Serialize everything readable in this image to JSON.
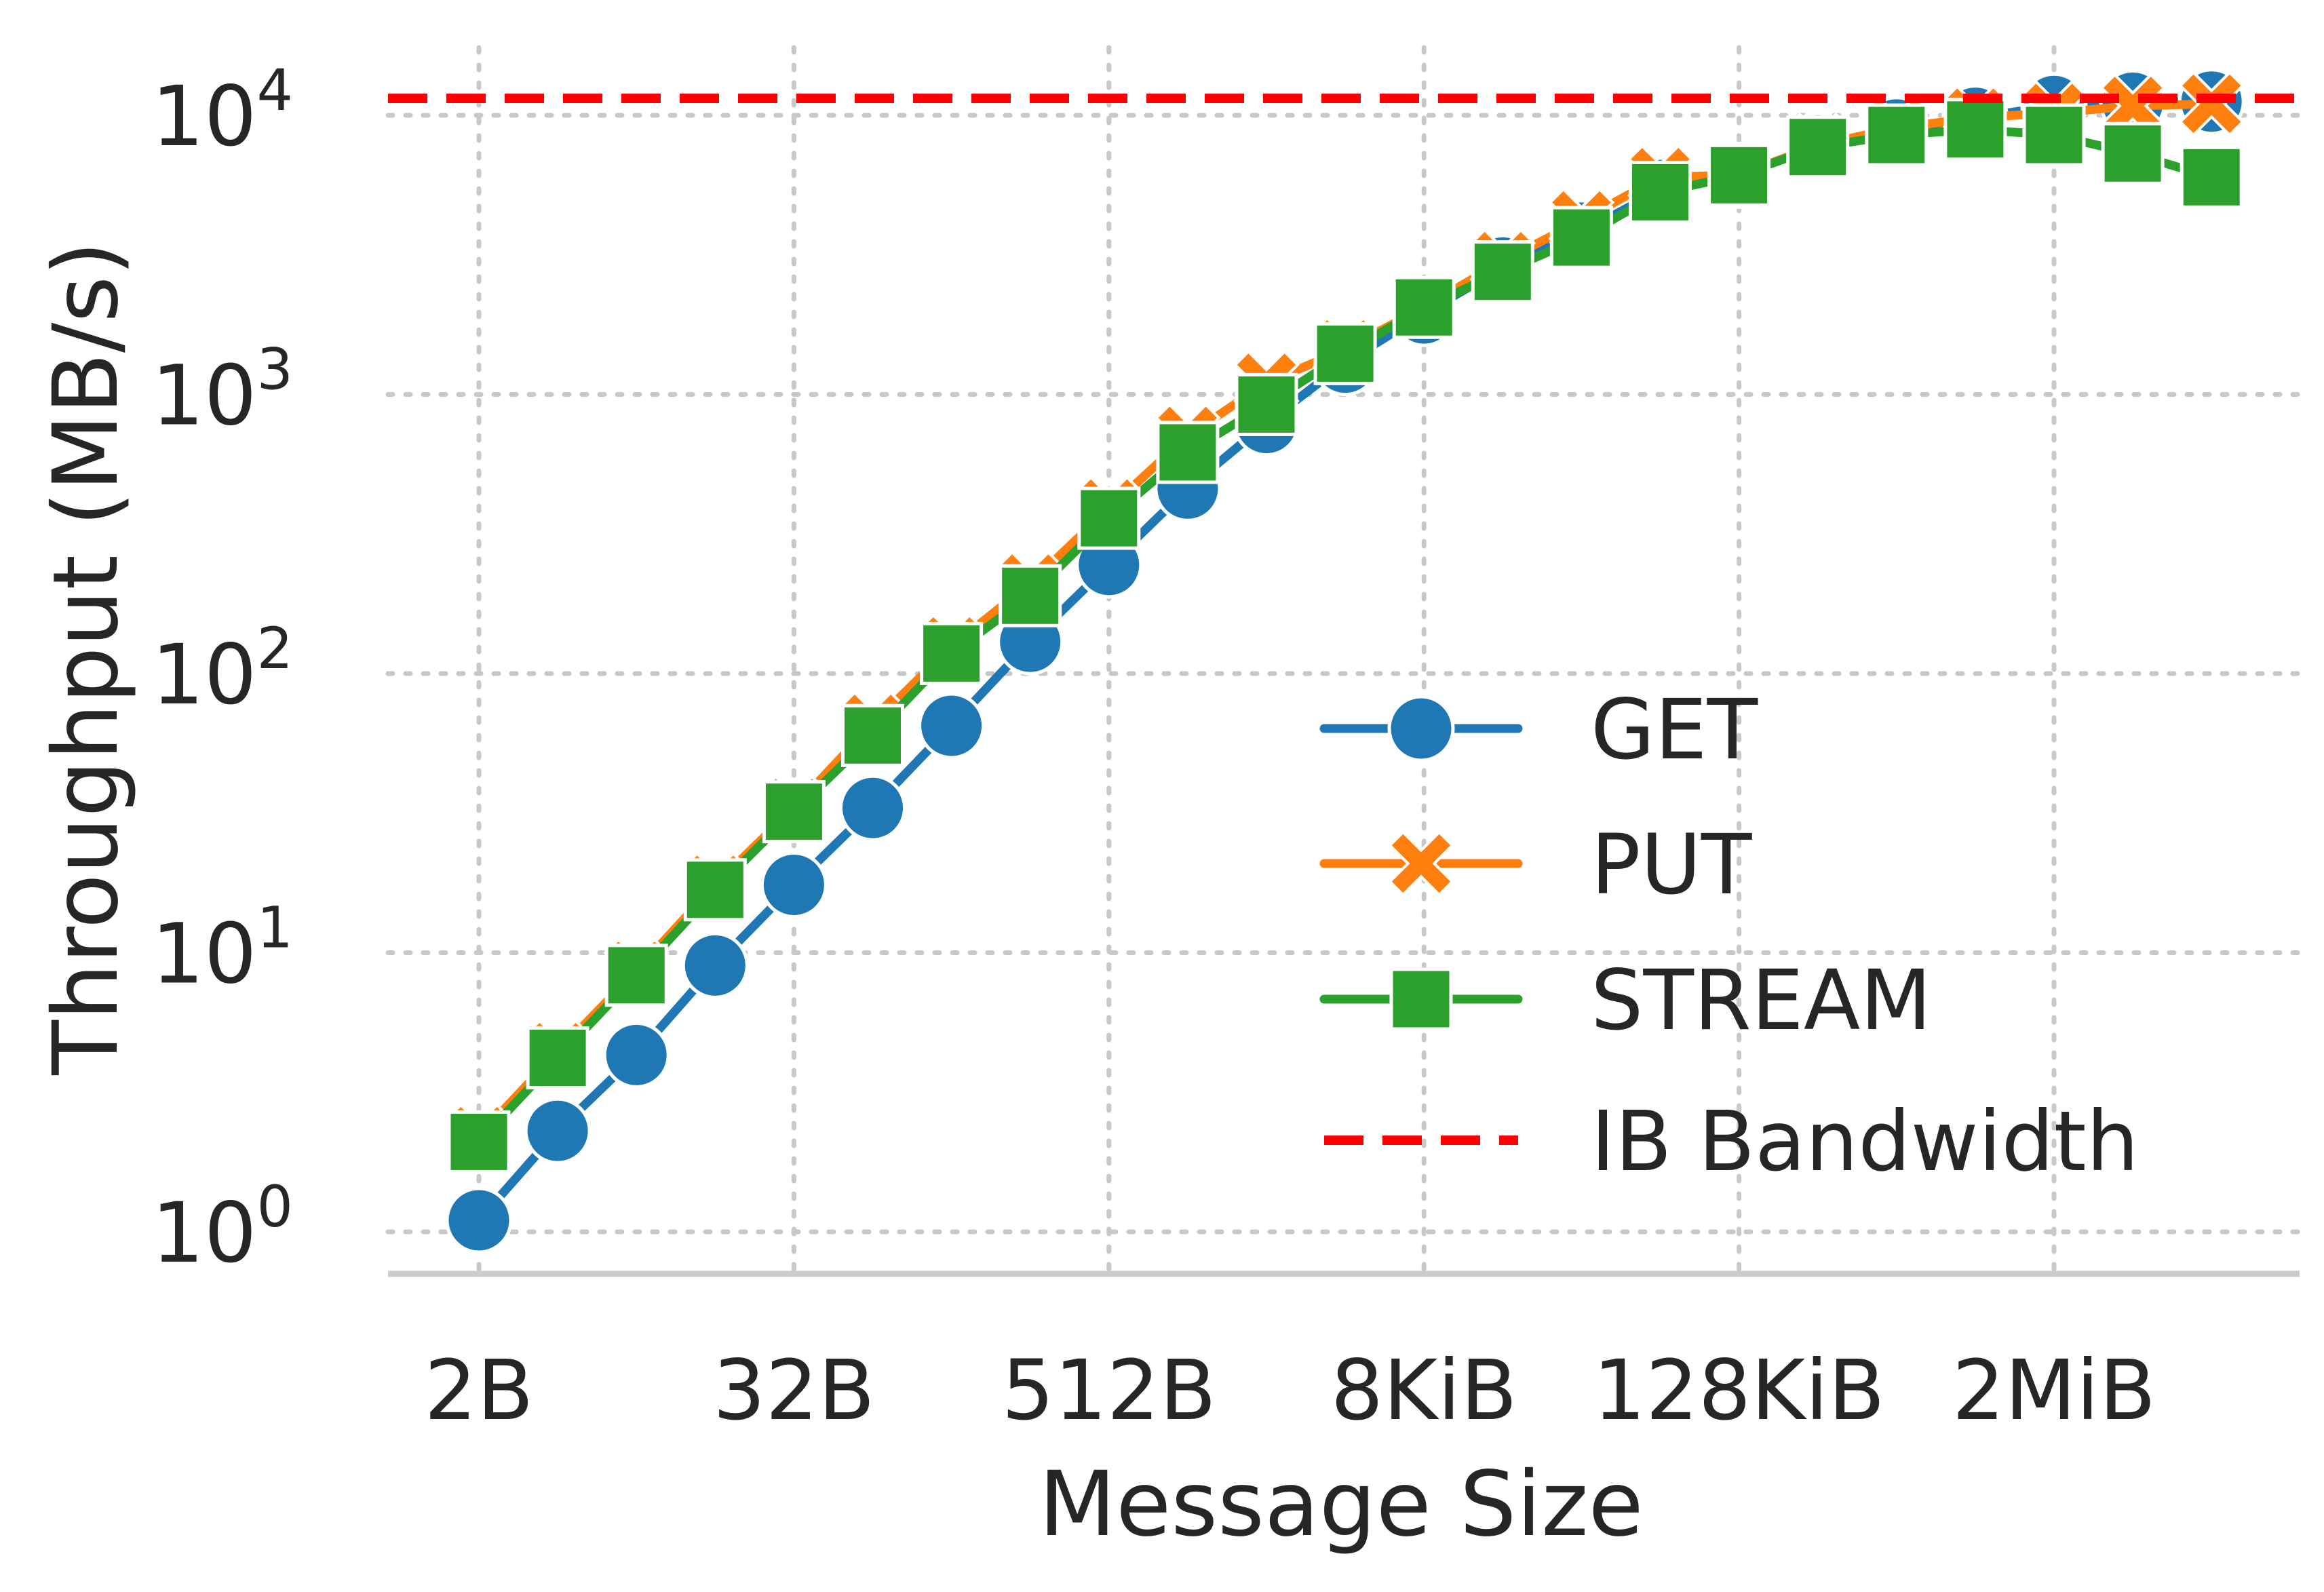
{
  "chart_data": {
    "type": "line",
    "xlabel": "Message Size",
    "ylabel": "Throughput (MB/s)",
    "x_scale": "log2",
    "y_scale": "log10",
    "x_tick_positions_log2": [
      1,
      5,
      9,
      13,
      17,
      21
    ],
    "x_tick_labels": [
      "2B",
      "32B",
      "512B",
      "8KiB",
      "128KiB",
      "2MiB"
    ],
    "y_tick_exponents": [
      0,
      1,
      2,
      3,
      4
    ],
    "y_tick_base": "10",
    "x": [
      "2B",
      "4B",
      "8B",
      "16B",
      "32B",
      "64B",
      "128B",
      "256B",
      "512B",
      "1KiB",
      "2KiB",
      "4KiB",
      "8KiB",
      "16KiB",
      "32KiB",
      "64KiB",
      "128KiB",
      "256KiB",
      "512KiB",
      "1MiB",
      "2MiB",
      "4MiB",
      "8MiB"
    ],
    "grid": true,
    "legend_position": "lower-right",
    "series": [
      {
        "name": "GET",
        "color": "#1f77b4",
        "marker": "circle",
        "values": [
          1.1,
          2.3,
          4.3,
          9.0,
          17.5,
          33,
          65,
          130,
          245,
          460,
          790,
          1300,
          1950,
          2850,
          3800,
          5400,
          6100,
          7800,
          8900,
          9800,
          10800,
          11100,
          11200
        ]
      },
      {
        "name": "PUT",
        "color": "#ff7f0e",
        "marker": "x",
        "values": [
          2.2,
          4.4,
          8.6,
          17.5,
          33,
          66,
          125,
          210,
          390,
          710,
          1100,
          1450,
          2050,
          3000,
          4200,
          6000,
          6100,
          7800,
          9000,
          9800,
          10200,
          10800,
          11000
        ]
      },
      {
        "name": "STREAM",
        "color": "#2ca02c",
        "marker": "square",
        "values": [
          2.1,
          4.2,
          8.3,
          16.8,
          32,
          60,
          118,
          190,
          360,
          620,
          920,
          1400,
          2050,
          2750,
          3650,
          5300,
          6100,
          7700,
          8500,
          8900,
          8500,
          7300,
          6000
        ]
      },
      {
        "name": "IB Bandwidth",
        "color": "#ff0000",
        "style": "dashed",
        "constant_value": 11500
      }
    ]
  }
}
